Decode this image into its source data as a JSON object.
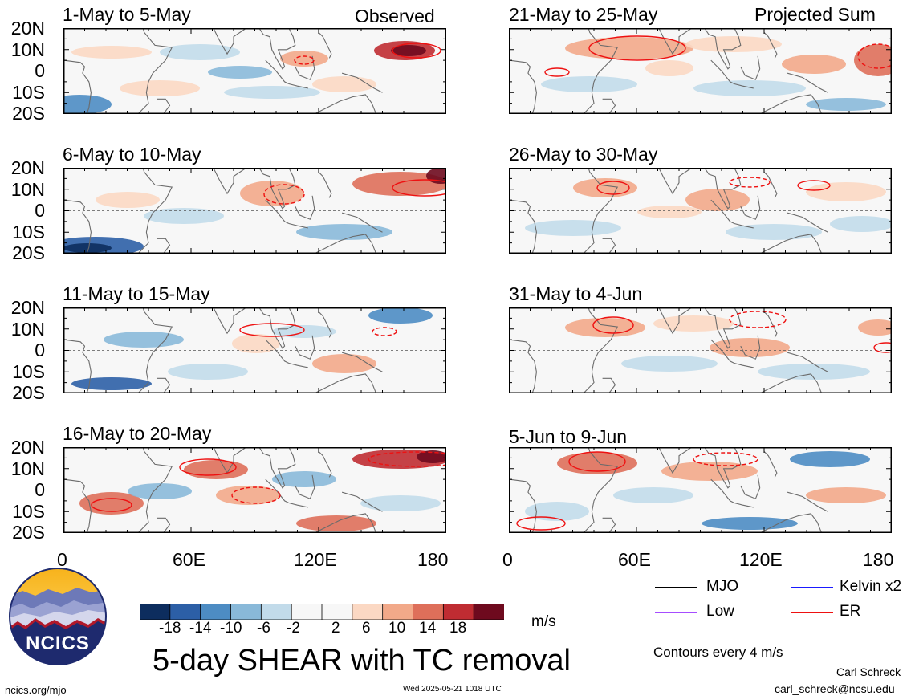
{
  "title": "5-day SHEAR with TC removal",
  "units": "m/s",
  "contour_note": "Contours every 4 m/s",
  "logo_text": "NCICS",
  "site": "ncics.org/mjo",
  "timestamp": "Wed 2025-05-21 1018 UTC",
  "author": "Carl Schreck",
  "email": "carl_schreck@ncsu.edu",
  "left_tag": "Observed",
  "right_tag": "Projected Sum",
  "legend": [
    {
      "label": "MJO",
      "color": "#000000"
    },
    {
      "label": "Kelvin x2",
      "color": "#1a1aff"
    },
    {
      "label": "Low",
      "color": "#a64dff"
    },
    {
      "label": "ER",
      "color": "#ee1111"
    }
  ],
  "colorbar": {
    "colors": [
      "#0d2d5e",
      "#2c5fa6",
      "#4d8cc3",
      "#89b9d9",
      "#c2dbea",
      "#f7f7f7",
      "#f7f7f7",
      "#fbd8c3",
      "#f2a989",
      "#de6f5a",
      "#bf2c32",
      "#6e0a1e"
    ],
    "ticks": [
      "-18",
      "-14",
      "-10",
      "-6",
      "-2",
      "2",
      "6",
      "10",
      "14",
      "18"
    ]
  },
  "lat_labels": [
    "20N",
    "10N",
    "0",
    "10S",
    "20S"
  ],
  "lon_labels": [
    "0",
    "60E",
    "120E",
    "180"
  ],
  "chart_data": [
    {
      "type": "heatmap",
      "title": "1-May to 5-May",
      "x_range": [
        0,
        180
      ],
      "y_range": [
        -20,
        20
      ],
      "units": "m/s",
      "contour_interval": 4
    },
    {
      "type": "heatmap",
      "title": "21-May to 25-May",
      "x_range": [
        0,
        180
      ],
      "y_range": [
        -20,
        20
      ],
      "units": "m/s",
      "contour_interval": 4
    },
    {
      "type": "heatmap",
      "title": "6-May to 10-May",
      "x_range": [
        0,
        180
      ],
      "y_range": [
        -20,
        20
      ],
      "units": "m/s",
      "contour_interval": 4
    },
    {
      "type": "heatmap",
      "title": "26-May to 30-May",
      "x_range": [
        0,
        180
      ],
      "y_range": [
        -20,
        20
      ],
      "units": "m/s",
      "contour_interval": 4
    },
    {
      "type": "heatmap",
      "title": "11-May to 15-May",
      "x_range": [
        0,
        180
      ],
      "y_range": [
        -20,
        20
      ],
      "units": "m/s",
      "contour_interval": 4
    },
    {
      "type": "heatmap",
      "title": "31-May to 4-Jun",
      "x_range": [
        0,
        180
      ],
      "y_range": [
        -20,
        20
      ],
      "units": "m/s",
      "contour_interval": 4
    },
    {
      "type": "heatmap",
      "title": "16-May to 20-May",
      "x_range": [
        0,
        180
      ],
      "y_range": [
        -20,
        20
      ],
      "units": "m/s",
      "contour_interval": 4
    },
    {
      "type": "heatmap",
      "title": "5-Jun to 9-Jun",
      "x_range": [
        0,
        180
      ],
      "y_range": [
        -20,
        20
      ],
      "units": "m/s",
      "contour_interval": 4
    }
  ]
}
